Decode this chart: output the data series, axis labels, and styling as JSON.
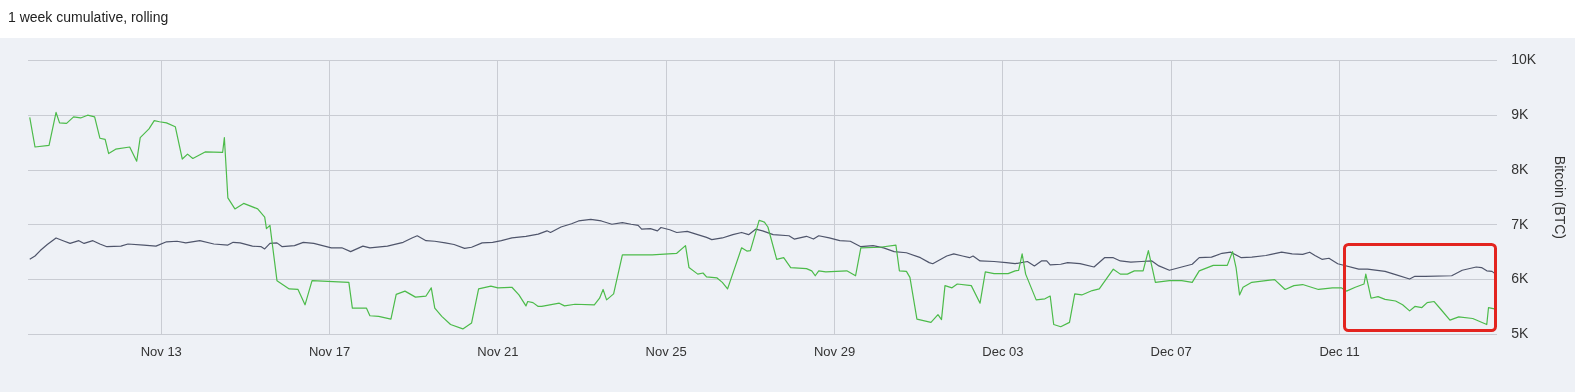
{
  "chart_data": {
    "type": "line",
    "title": "1 week cumulative, rolling",
    "ylabel": "Bitcoin (BTC)",
    "xlim": [
      "--11-09T20:00",
      "--12-14T18:00"
    ],
    "xticks": [
      {
        "value": "--11-13",
        "label": "Nov 13"
      },
      {
        "value": "--11-17",
        "label": "Nov 17"
      },
      {
        "value": "--11-21",
        "label": "Nov 21"
      },
      {
        "value": "--11-25",
        "label": "Nov 25"
      },
      {
        "value": "--11-29",
        "label": "Nov 29"
      },
      {
        "value": "--12-03",
        "label": "Dec 03"
      },
      {
        "value": "--12-07",
        "label": "Dec 07"
      },
      {
        "value": "--12-11",
        "label": "Dec 11"
      }
    ],
    "ylim": [
      5000,
      10000
    ],
    "yticks": [
      {
        "value": 5000,
        "label": "5K"
      },
      {
        "value": 6000,
        "label": "6K"
      },
      {
        "value": 7000,
        "label": "7K"
      },
      {
        "value": 8000,
        "label": "8K"
      },
      {
        "value": 9000,
        "label": "9K"
      },
      {
        "value": 10000,
        "label": "10K"
      }
    ],
    "grid": true,
    "marker": "none",
    "series": [
      {
        "color": "#4cbb4a",
        "x": [
          "--11-09T21:00",
          "--11-10T00:00",
          "--11-10T08:00",
          "--11-10T12:00",
          "--11-10T14:00",
          "--11-10T18:00",
          "--11-10T22:00",
          "--11-11T02:00",
          "--11-11T06:00",
          "--11-11T10:00",
          "--11-11T13:00",
          "--11-11T16:00",
          "--11-11T18:00",
          "--11-11T22:00",
          "--11-12T06:00",
          "--11-12T10:00",
          "--11-12T12:00",
          "--11-12T17:00",
          "--11-12T20:00",
          "--11-12T23:00",
          "--11-13T03:00",
          "--11-13T08:00",
          "--11-13T12:00",
          "--11-13T15:00",
          "--11-13T18:00",
          "--11-14T01:00",
          "--11-14T11:00",
          "--11-14T12:00",
          "--11-14T14:00",
          "--11-14T18:00",
          "--11-14T23:00",
          "--11-15T07:00",
          "--11-15T11:00",
          "--11-15T12:00",
          "--11-15T14:00",
          "--11-15T18:00",
          "--11-16T01:00",
          "--11-16T06:00",
          "--11-16T10:00",
          "--11-16T14:00",
          "--11-17T11:00",
          "--11-17T13:00",
          "--11-17T21:00",
          "--11-17T23:00",
          "--11-18T04:00",
          "--11-18T11:00",
          "--11-18T14:00",
          "--11-18T19:00",
          "--11-19T01:00",
          "--11-19T07:00",
          "--11-19T10:00",
          "--11-19T12:00",
          "--11-19T16:00",
          "--11-19T21:00",
          "--11-20T04:00",
          "--11-20T09:00",
          "--11-20T13:00",
          "--11-20T20:00",
          "--11-21T00:00",
          "--11-21T08:00",
          "--11-21T12:00",
          "--11-21T16:00",
          "--11-21T17:00",
          "--11-21T20:00",
          "--11-21T23:00",
          "--11-22T01:00",
          "--11-22T11:00",
          "--11-22T14:00",
          "--11-22T20:00",
          "--11-23T07:00",
          "--11-23T10:00",
          "--11-23T12:00",
          "--11-23T14:00",
          "--11-23T18:00",
          "--11-23T23:00",
          "--11-24T16:00",
          "--11-25T06:00",
          "--11-25T11:00",
          "--11-25T13:00",
          "--11-25T18:00",
          "--11-25T21:00",
          "--11-25T23:00",
          "--11-26T05:00",
          "--11-26T08:00",
          "--11-26T11:00",
          "--11-26T19:00",
          "--11-26T22:00",
          "--11-27T00:00",
          "--11-27T05:00",
          "--11-27T08:00",
          "--11-27T10:00",
          "--11-27T15:00",
          "--11-27T19:00",
          "--11-27T23:00",
          "--11-28T08:00",
          "--11-28T11:00",
          "--11-28T13:00",
          "--11-28T15:00",
          "--11-28T17:00",
          "--11-28T19:00",
          "--11-29T07:00",
          "--11-29T12:00",
          "--11-29T15:00",
          "--11-30T02:00",
          "--11-30T11:00",
          "--11-30T13:00",
          "--11-30T17:00",
          "--11-30T19:00",
          "--11-30T23:00",
          "--12-01T07:00",
          "--12-01T11:00",
          "--12-01T13:00",
          "--12-01T15:00",
          "--12-01T19:00",
          "--12-01T22:00",
          "--12-02T06:00",
          "--12-02T11:00",
          "--12-02T14:00",
          "--12-02T19:00",
          "--12-03T03:00",
          "--12-03T07:00",
          "--12-03T09:00",
          "--12-03T11:00",
          "--12-03T13:00",
          "--12-03T19:00",
          "--12-04T00:00",
          "--12-04T03:00",
          "--12-04T05:00",
          "--12-04T09:00",
          "--12-04T14:00",
          "--12-04T17:00",
          "--12-04T21:00",
          "--12-05T03:00",
          "--12-05T07:00",
          "--12-05T15:00",
          "--12-05T19:00",
          "--12-05T23:00",
          "--12-06T03:00",
          "--12-06T08:00",
          "--12-06T11:00",
          "--12-06T15:00",
          "--12-06T23:00",
          "--12-07T06:00",
          "--12-07T12:00",
          "--12-07T16:00",
          "--12-08T00:00",
          "--12-08T08:00",
          "--12-08T11:00",
          "--12-08T13:00",
          "--12-08T15:00",
          "--12-08T17:00",
          "--12-08T22:00",
          "--12-09T06:00",
          "--12-09T11:00",
          "--12-09T17:00",
          "--12-09T22:00",
          "--12-10T03:00",
          "--12-10T12:00",
          "--12-10T20:00",
          "--12-11T01:00",
          "--12-11T04:00",
          "--12-11T09:00",
          "--12-11T14:00",
          "--12-11T15:00",
          "--12-11T18:00",
          "--12-11T22:00",
          "--12-12T02:00",
          "--12-12T08:00",
          "--12-12T12:00",
          "--12-12T16:00",
          "--12-12T19:00",
          "--12-12T23:00",
          "--12-13T02:00",
          "--12-13T06:00",
          "--12-13T10:00",
          "--12-13T15:00",
          "--12-13T20:00",
          "--12-14T04:00",
          "--12-14T12:00",
          "--12-14T13:00",
          "--12-14T17:00"
        ],
        "values": [
          8960,
          8420,
          8450,
          9050,
          8860,
          8850,
          8970,
          8950,
          9000,
          8970,
          8580,
          8560,
          8300,
          8380,
          8420,
          8160,
          8590,
          8750,
          8900,
          8880,
          8860,
          8790,
          8200,
          8290,
          8210,
          8330,
          8320,
          8590,
          7490,
          7290,
          7390,
          7290,
          7140,
          6930,
          6990,
          5980,
          5830,
          5820,
          5540,
          5980,
          5950,
          5480,
          5480,
          5340,
          5330,
          5280,
          5730,
          5790,
          5680,
          5700,
          5850,
          5480,
          5330,
          5180,
          5100,
          5210,
          5830,
          5880,
          5850,
          5860,
          5720,
          5520,
          5600,
          5580,
          5510,
          5510,
          5570,
          5520,
          5550,
          5540,
          5660,
          5820,
          5630,
          5740,
          6450,
          6450,
          6480,
          6620,
          6220,
          6100,
          6120,
          6050,
          6030,
          5950,
          5830,
          6580,
          6520,
          6530,
          7080,
          7050,
          6960,
          6370,
          6400,
          6220,
          6200,
          6160,
          6070,
          6160,
          6150,
          6140,
          6160,
          6070,
          6580,
          6590,
          6630,
          6160,
          6150,
          6040,
          5280,
          5220,
          5360,
          5270,
          5890,
          5850,
          5920,
          5890,
          5570,
          6140,
          6110,
          6110,
          6160,
          6170,
          6470,
          6100,
          5630,
          5650,
          5700,
          5180,
          5140,
          5220,
          5740,
          5720,
          5800,
          5830,
          6190,
          6100,
          6100,
          6160,
          6160,
          6530,
          5950,
          5980,
          5980,
          5950,
          6160,
          6260,
          6260,
          6510,
          6220,
          5720,
          5860,
          5950,
          5980,
          6000,
          5820,
          5890,
          5910,
          5820,
          5850,
          5850,
          5790,
          5860,
          5920,
          6100,
          5660,
          5690,
          5640,
          5610,
          5540,
          5430,
          5510,
          5490,
          5580,
          5600,
          5450,
          5260,
          5320,
          5290,
          5180,
          5490,
          5460
        ]
      },
      {
        "color": "#4f556b",
        "x": [
          "--11-09T21:00",
          "--11-10T00:00",
          "--11-10T03:00",
          "--11-10T07:00",
          "--11-10T12:00",
          "--11-10T16:00",
          "--11-10T20:00",
          "--11-11T01:00",
          "--11-11T04:00",
          "--11-11T09:00",
          "--11-11T13:00",
          "--11-11T17:00",
          "--11-12T01:00",
          "--11-12T05:00",
          "--11-12T14:00",
          "--11-12T21:00",
          "--11-13T03:00",
          "--11-13T09:00",
          "--11-13T14:00",
          "--11-13T22:00",
          "--11-14T06:00",
          "--11-14T14:00",
          "--11-14T17:00",
          "--11-14T21:00",
          "--11-15T04:00",
          "--11-15T09:00",
          "--11-15T11:00",
          "--11-15T14:00",
          "--11-15T18:00",
          "--11-15T21:00",
          "--11-16T04:00",
          "--11-16T09:00",
          "--11-16T15:00",
          "--11-17T01:00",
          "--11-17T07:00",
          "--11-17T12:00",
          "--11-17T19:00",
          "--11-17T23:00",
          "--11-18T09:00",
          "--11-18T18:00",
          "--11-18T23:00",
          "--11-19T02:00",
          "--11-19T07:00",
          "--11-19T12:00",
          "--11-19T18:00",
          "--11-19T23:00",
          "--11-20T05:00",
          "--11-20T09:00",
          "--11-20T15:00",
          "--11-20T21:00",
          "--11-21T02:00",
          "--11-21T08:00",
          "--11-21T16:00",
          "--11-21T23:00",
          "--11-22T04:00",
          "--11-22T06:00",
          "--11-22T12:00",
          "--11-22T18:00",
          "--11-22T22:00",
          "--11-23T05:00",
          "--11-23T11:00",
          "--11-23T17:00",
          "--11-23T23:00",
          "--11-24T04:00",
          "--11-24T08:00",
          "--11-24T10:00",
          "--11-24T15:00",
          "--11-24T19:00",
          "--11-24T21:00",
          "--11-25T02:00",
          "--11-25T06:00",
          "--11-25T12:00",
          "--11-25T17:00",
          "--11-25T23:00",
          "--11-26T02:00",
          "--11-26T08:00",
          "--11-26T14:00",
          "--11-26T19:00",
          "--11-26T23:00",
          "--11-27T03:00",
          "--11-27T07:00",
          "--11-27T13:00",
          "--11-27T22:00",
          "--11-28T01:00",
          "--11-28T08:00",
          "--11-28T12:00",
          "--11-28T15:00",
          "--11-28T21:00",
          "--11-29T03:00",
          "--11-29T09:00",
          "--11-29T15:00",
          "--11-29T22:00",
          "--11-30T04:00",
          "--11-30T10:00",
          "--11-30T17:00",
          "--12-01T01:00",
          "--12-01T06:00",
          "--12-01T08:00",
          "--12-01T16:00",
          "--12-01T20:00",
          "--12-02T01:00",
          "--12-02T05:00",
          "--12-02T07:00",
          "--12-02T11:00",
          "--12-02T19:00",
          "--12-03T02:00",
          "--12-03T07:00",
          "--12-03T14:00",
          "--12-03T18:00",
          "--12-03T22:00",
          "--12-04T01:00",
          "--12-04T03:00",
          "--12-04T09:00",
          "--12-04T13:00",
          "--12-04T20:00",
          "--12-05T04:00",
          "--12-05T10:00",
          "--12-05T15:00",
          "--12-05T19:00",
          "--12-06T01:00",
          "--12-06T07:00",
          "--12-06T13:00",
          "--12-06T17:00",
          "--12-06T23:00",
          "--12-07T06:00",
          "--12-07T12:00",
          "--12-07T16:00",
          "--12-07T23:00",
          "--12-08T05:00",
          "--12-08T10:00",
          "--12-08T16:00",
          "--12-08T22:00",
          "--12-09T06:00",
          "--12-09T09:00",
          "--12-09T15:00",
          "--12-09T21:00",
          "--12-10T03:00",
          "--12-10T07:00",
          "--12-10T10:00",
          "--12-10T14:00",
          "--12-10T18:00",
          "--12-10T23:00",
          "--12-11T11:00",
          "--12-11T16:00",
          "--12-12T02:00",
          "--12-12T08:00",
          "--12-12T16:00",
          "--12-12T19:00",
          "--12-13T01:00",
          "--12-13T16:00",
          "--12-13T22:00",
          "--12-14T06:00",
          "--12-14T09:00",
          "--12-14T12:00",
          "--12-14T15:00",
          "--12-14T17:00"
        ],
        "values": [
          6370,
          6430,
          6530,
          6640,
          6760,
          6710,
          6660,
          6710,
          6660,
          6710,
          6650,
          6600,
          6610,
          6650,
          6630,
          6610,
          6690,
          6700,
          6670,
          6710,
          6650,
          6630,
          6680,
          6670,
          6610,
          6600,
          6560,
          6660,
          6670,
          6600,
          6620,
          6680,
          6660,
          6580,
          6580,
          6510,
          6610,
          6580,
          6610,
          6680,
          6760,
          6800,
          6710,
          6700,
          6670,
          6640,
          6570,
          6590,
          6670,
          6680,
          6710,
          6760,
          6790,
          6830,
          6890,
          6860,
          6960,
          7020,
          7070,
          7100,
          7070,
          7010,
          7040,
          7010,
          6990,
          6920,
          6930,
          6890,
          6950,
          6910,
          6860,
          6880,
          6830,
          6770,
          6730,
          6760,
          6820,
          6860,
          6820,
          6920,
          6890,
          6820,
          6800,
          6740,
          6790,
          6740,
          6800,
          6760,
          6710,
          6700,
          6600,
          6620,
          6580,
          6510,
          6490,
          6400,
          6310,
          6290,
          6430,
          6470,
          6430,
          6400,
          6430,
          6340,
          6330,
          6310,
          6290,
          6330,
          6250,
          6340,
          6340,
          6270,
          6280,
          6310,
          6290,
          6230,
          6400,
          6400,
          6340,
          6320,
          6330,
          6340,
          6250,
          6170,
          6230,
          6280,
          6400,
          6410,
          6480,
          6500,
          6400,
          6410,
          6440,
          6460,
          6500,
          6470,
          6460,
          6500,
          6440,
          6370,
          6390,
          6290,
          6190,
          6190,
          6150,
          6090,
          6010,
          6060,
          6060,
          6070,
          6170,
          6230,
          6220,
          6160,
          6150,
          6100
        ]
      }
    ]
  }
}
